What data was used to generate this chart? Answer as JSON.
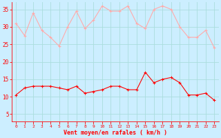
{
  "hours": [
    0,
    1,
    2,
    3,
    4,
    5,
    6,
    7,
    8,
    9,
    10,
    11,
    12,
    13,
    14,
    15,
    16,
    17,
    18,
    19,
    20,
    21,
    22,
    23
  ],
  "wind_avg": [
    10.5,
    12.5,
    13,
    13,
    13,
    12.5,
    12,
    13,
    11,
    11.5,
    12,
    13,
    13,
    12,
    12,
    17,
    14,
    15,
    15.5,
    14,
    10.5,
    10.5,
    11,
    9
  ],
  "wind_gust": [
    31,
    27.5,
    34,
    29,
    27,
    24.5,
    30,
    34.5,
    29.5,
    32,
    36,
    34.5,
    34.5,
    36,
    31,
    29.5,
    35,
    36,
    35,
    30,
    27,
    27,
    29,
    24
  ],
  "avg_color": "#ff0000",
  "gust_color": "#ffaaaa",
  "bg_color": "#cceeff",
  "grid_color": "#aadddd",
  "xlabel": "Vent moyen/en rafales ( km/h )",
  "ylim": [
    3,
    37
  ],
  "yticks": [
    5,
    10,
    15,
    20,
    25,
    30,
    35
  ]
}
